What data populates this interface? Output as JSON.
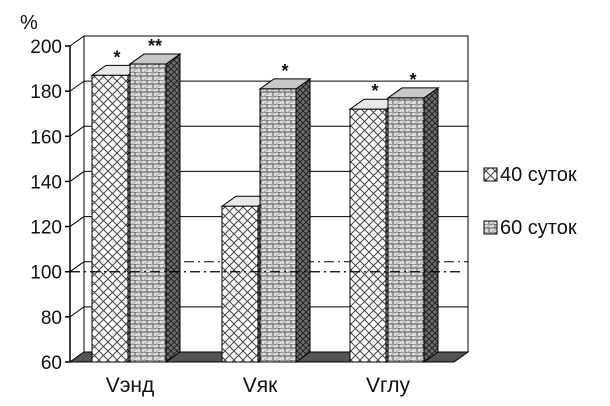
{
  "chart_data": {
    "type": "bar",
    "style": "3d-clustered",
    "ylabel": "%",
    "ylim": [
      60,
      200
    ],
    "yticks": [
      60,
      80,
      100,
      120,
      140,
      160,
      180,
      200
    ],
    "reference_line": 100,
    "grid": true,
    "legend_placement": "right",
    "categories": [
      "Vэнд",
      "Vяк",
      "Vглу"
    ],
    "series": [
      {
        "name": "40 суток",
        "values": [
          187,
          129,
          172
        ],
        "annotations": [
          "*",
          "",
          "*"
        ],
        "pattern": "diagonal-cross"
      },
      {
        "name": "60 суток",
        "values": [
          192,
          181,
          177
        ],
        "annotations": [
          "**",
          "*",
          "*"
        ],
        "pattern": "brick"
      }
    ]
  }
}
